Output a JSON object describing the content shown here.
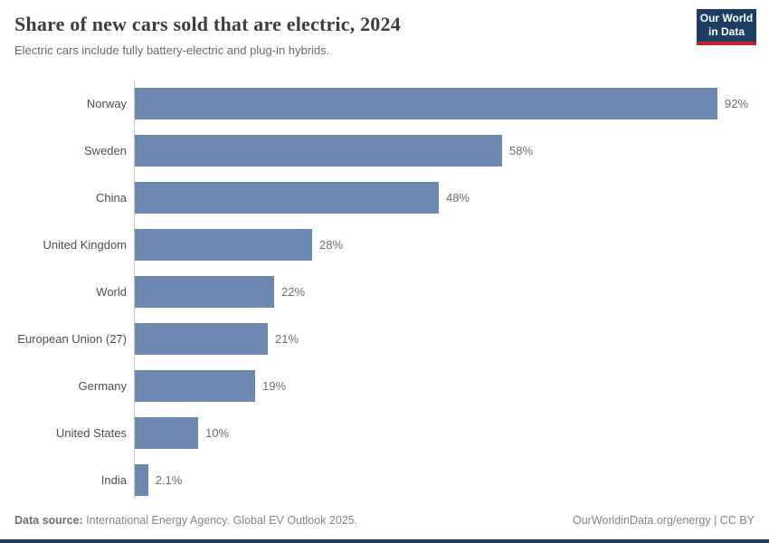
{
  "header": {
    "title": "Share of new cars sold that are electric, 2024",
    "subtitle": "Electric cars include fully battery-electric and plug-in hybrids."
  },
  "logo": {
    "line1": "Our World",
    "line2": "in Data",
    "bg_color": "#1d3d63",
    "accent_color": "#c1232b"
  },
  "chart_data": {
    "type": "bar",
    "orientation": "horizontal",
    "title": "Share of new cars sold that are electric, 2024",
    "categories": [
      "Norway",
      "Sweden",
      "China",
      "United Kingdom",
      "World",
      "European Union (27)",
      "Germany",
      "United States",
      "India"
    ],
    "values": [
      92,
      58,
      48,
      28,
      22,
      21,
      19,
      10,
      2.1
    ],
    "value_labels": [
      "92%",
      "58%",
      "48%",
      "28%",
      "22%",
      "21%",
      "19%",
      "10%",
      "2.1%"
    ],
    "xlabel": "",
    "ylabel": "",
    "xlim": [
      0,
      100
    ],
    "grid": false,
    "legend": false,
    "bar_color": "#6c87b0"
  },
  "footer": {
    "source_label": "Data source:",
    "source_text": " International Energy Agency. Global EV Outlook 2025.",
    "right_text": "OurWorldinData.org/energy | CC BY"
  }
}
